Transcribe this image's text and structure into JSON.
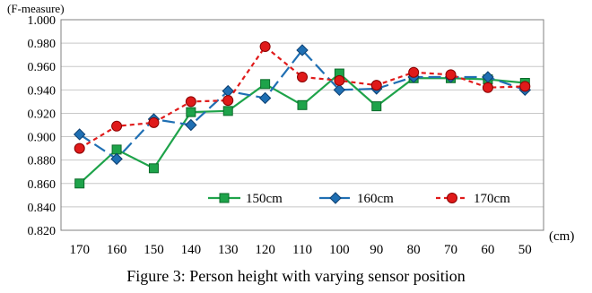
{
  "chart_data": {
    "type": "line",
    "title": "",
    "ylabel": "(F-measure)",
    "xlabel": "(cm)",
    "ylim": [
      0.82,
      1.0
    ],
    "ytick_step": 0.02,
    "ytick_labels": [
      "0.820",
      "0.840",
      "0.860",
      "0.880",
      "0.900",
      "0.920",
      "0.940",
      "0.960",
      "0.980",
      "1.000"
    ],
    "categories": [
      "170",
      "160",
      "150",
      "140",
      "130",
      "120",
      "110",
      "100",
      "90",
      "80",
      "70",
      "60",
      "50"
    ],
    "grid": "horizontal",
    "legend_position": "bottom-right",
    "series": [
      {
        "name": "150cm",
        "color": "#1ea34a",
        "marker": "square",
        "dash": "solid",
        "values": [
          0.86,
          0.889,
          0.873,
          0.921,
          0.922,
          0.945,
          0.927,
          0.954,
          0.926,
          0.95,
          0.95,
          0.949,
          0.946
        ]
      },
      {
        "name": "160cm",
        "color": "#1f6fb3",
        "marker": "diamond",
        "dash": "longdash",
        "values": [
          0.902,
          0.881,
          0.915,
          0.91,
          0.939,
          0.933,
          0.974,
          0.94,
          0.941,
          0.951,
          0.951,
          0.951,
          0.94
        ]
      },
      {
        "name": "170cm",
        "color": "#e01a1a",
        "marker": "circle",
        "dash": "dotted",
        "values": [
          0.89,
          0.909,
          0.912,
          0.93,
          0.931,
          0.977,
          0.951,
          0.948,
          0.944,
          0.955,
          0.953,
          0.942,
          0.943
        ]
      }
    ]
  },
  "caption": "Figure 3: Person height with varying sensor position"
}
